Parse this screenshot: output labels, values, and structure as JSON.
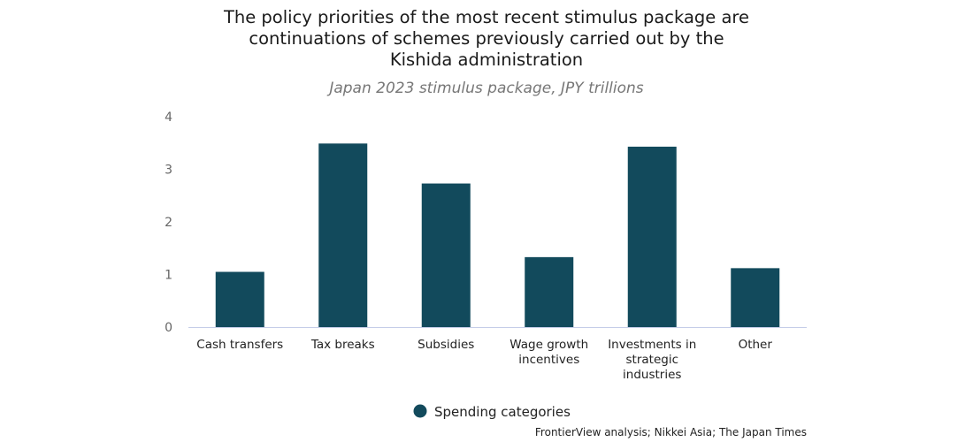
{
  "chart_data": {
    "type": "bar",
    "title": "The policy priorities of the most recent stimulus package are continuations of schemes previously carried out by the Kishida administration",
    "subtitle": "Japan 2023 stimulus package, JPY trillions",
    "categories": [
      "Cash transfers",
      "Tax breaks",
      "Subsidies",
      "Wage growth incentives",
      "Investments in strategic industries",
      "Other"
    ],
    "category_lines": [
      [
        "Cash transfers"
      ],
      [
        "Tax breaks"
      ],
      [
        "Subsidies"
      ],
      [
        "Wage growth",
        "incentives"
      ],
      [
        "Investments in",
        "strategic",
        "industries"
      ],
      [
        "Other"
      ]
    ],
    "series": [
      {
        "name": "Spending categories",
        "values": [
          1.05,
          3.49,
          2.73,
          1.33,
          3.43,
          1.12
        ],
        "color": "#124a5c"
      }
    ],
    "ylim": [
      0,
      4
    ],
    "yticks": [
      0,
      1,
      2,
      3,
      4
    ],
    "grid": false,
    "legend": "bottom-center",
    "xlabel": "",
    "ylabel": ""
  },
  "source": "FrontierView analysis; Nikkei Asia; The Japan Times"
}
